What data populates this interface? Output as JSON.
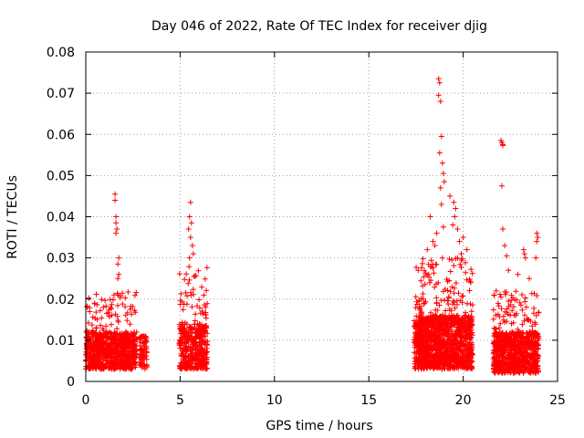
{
  "chart_data": {
    "type": "scatter",
    "title": "Day 046 of 2022, Rate Of TEC Index for receiver djig",
    "xlabel": "GPS time / hours",
    "ylabel": "ROTI / TECUs",
    "xlim": [
      0,
      25
    ],
    "ylim": [
      0,
      0.08
    ],
    "x_ticks": [
      0,
      5,
      10,
      15,
      20,
      25
    ],
    "x_tick_labels": [
      "0",
      "5",
      "10",
      "15",
      "20",
      "25"
    ],
    "y_ticks": [
      0,
      0.01,
      0.02,
      0.03,
      0.04,
      0.05,
      0.06,
      0.07,
      0.08
    ],
    "y_tick_labels": [
      "0",
      "0.01",
      "0.02",
      "0.03",
      "0.04",
      "0.05",
      "0.06",
      "0.07",
      "0.08"
    ],
    "grid": true,
    "marker": "+",
    "marker_color": "#ff0000",
    "clusters": [
      {
        "x_range": [
          0.0,
          2.7
        ],
        "y_base": [
          0.003,
          0.012
        ],
        "y_peak": 0.022,
        "count": 900
      },
      {
        "x_range": [
          2.85,
          3.25
        ],
        "y_base": [
          0.003,
          0.011
        ],
        "y_peak": 0.012,
        "count": 80
      },
      {
        "x_range": [
          4.95,
          6.45
        ],
        "y_base": [
          0.003,
          0.014
        ],
        "y_peak": 0.028,
        "count": 450
      },
      {
        "x_range": [
          17.4,
          20.5
        ],
        "y_base": [
          0.003,
          0.016
        ],
        "y_peak": 0.03,
        "count": 1400
      },
      {
        "x_range": [
          21.6,
          24.0
        ],
        "y_base": [
          0.002,
          0.012
        ],
        "y_peak": 0.022,
        "count": 850
      }
    ],
    "outliers": [
      [
        1.55,
        0.0455
      ],
      [
        1.55,
        0.044
      ],
      [
        1.6,
        0.0385
      ],
      [
        1.65,
        0.037
      ],
      [
        1.6,
        0.036
      ],
      [
        1.75,
        0.03
      ],
      [
        1.7,
        0.0285
      ],
      [
        1.75,
        0.026
      ],
      [
        1.7,
        0.025
      ],
      [
        1.6,
        0.04
      ],
      [
        5.55,
        0.0435
      ],
      [
        5.5,
        0.04
      ],
      [
        5.6,
        0.0385
      ],
      [
        5.45,
        0.037
      ],
      [
        5.55,
        0.035
      ],
      [
        5.65,
        0.033
      ],
      [
        5.7,
        0.031
      ],
      [
        5.5,
        0.03
      ],
      [
        18.7,
        0.0735
      ],
      [
        18.75,
        0.0725
      ],
      [
        18.7,
        0.0695
      ],
      [
        18.8,
        0.068
      ],
      [
        18.85,
        0.0595
      ],
      [
        18.75,
        0.0555
      ],
      [
        18.9,
        0.053
      ],
      [
        18.95,
        0.0505
      ],
      [
        19.0,
        0.0485
      ],
      [
        18.8,
        0.047
      ],
      [
        19.3,
        0.045
      ],
      [
        18.85,
        0.043
      ],
      [
        19.5,
        0.0435
      ],
      [
        19.6,
        0.042
      ],
      [
        19.55,
        0.04
      ],
      [
        19.45,
        0.038
      ],
      [
        18.95,
        0.0375
      ],
      [
        18.6,
        0.036
      ],
      [
        19.7,
        0.037
      ],
      [
        18.25,
        0.04
      ],
      [
        18.4,
        0.034
      ],
      [
        19.8,
        0.034
      ],
      [
        20.0,
        0.035
      ],
      [
        18.1,
        0.032
      ],
      [
        19.9,
        0.031
      ],
      [
        20.2,
        0.032
      ],
      [
        18.5,
        0.033
      ],
      [
        22.05,
        0.058
      ],
      [
        22.1,
        0.0575
      ],
      [
        22.0,
        0.0585
      ],
      [
        22.1,
        0.0573
      ],
      [
        22.05,
        0.0475
      ],
      [
        22.1,
        0.037
      ],
      [
        22.2,
        0.033
      ],
      [
        22.3,
        0.0305
      ],
      [
        23.2,
        0.032
      ],
      [
        23.25,
        0.031
      ],
      [
        23.3,
        0.03
      ],
      [
        23.9,
        0.036
      ],
      [
        23.95,
        0.035
      ],
      [
        23.9,
        0.034
      ],
      [
        23.85,
        0.03
      ],
      [
        22.9,
        0.026
      ],
      [
        23.5,
        0.025
      ],
      [
        22.4,
        0.027
      ]
    ]
  }
}
